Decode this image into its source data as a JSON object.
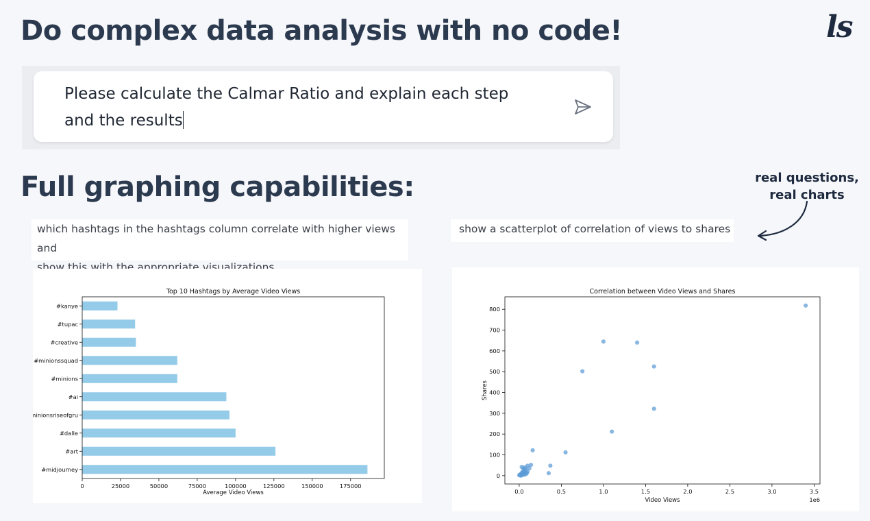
{
  "heading_main": "Do complex data analysis with no code!",
  "logo_text": "ls",
  "prompt": {
    "line1": "Please calculate the Calmar Ratio and explain each step",
    "line2": "and the results",
    "send_icon": "send-icon"
  },
  "heading_graph": "Full graphing capabilities:",
  "callout": {
    "line1": "real questions,",
    "line2": "real charts"
  },
  "query_left": {
    "line1": "which hashtags in the hashtags column correlate with higher views and",
    "line2": "show this with the appropriate visualizations"
  },
  "query_right": "show a scatterplot of correlation of views to shares",
  "colors": {
    "heading": "#2c3a4f",
    "bar": "#94cbe8",
    "point": "#5b9bd5"
  },
  "chart_data": [
    {
      "type": "bar",
      "orientation": "horizontal",
      "title": "Top 10 Hashtags by Average Video Views",
      "xlabel": "Average Video Views",
      "ylabel": "",
      "categories": [
        "#kanye",
        "#tupac",
        "#creative",
        "#minionssquad",
        "#minions",
        "#ai",
        "#minionsriseofgru",
        "#dalle",
        "#art",
        "#midjourney"
      ],
      "values": [
        23000,
        34500,
        35000,
        62000,
        62000,
        94000,
        96000,
        100000,
        126000,
        186000
      ],
      "xticks": [
        "0",
        "25000",
        "50000",
        "75000",
        "100000",
        "125000",
        "150000",
        "175000"
      ],
      "xtick_values": [
        0,
        25000,
        50000,
        75000,
        100000,
        125000,
        150000,
        175000
      ],
      "xlim": [
        0,
        197000
      ]
    },
    {
      "type": "scatter",
      "title": "Correlation between Video Views and Shares",
      "xlabel": "Video Views",
      "ylabel": "Shares",
      "x_scale_label": "1e6",
      "xticks": [
        "0.0",
        "0.5",
        "1.0",
        "1.5",
        "2.0",
        "2.5",
        "3.0",
        "3.5"
      ],
      "xtick_values": [
        0,
        0.5,
        1.0,
        1.5,
        2.0,
        2.5,
        3.0,
        3.5
      ],
      "yticks": [
        "0",
        "100",
        "200",
        "300",
        "400",
        "500",
        "600",
        "700",
        "800"
      ],
      "ytick_values": [
        0,
        100,
        200,
        300,
        400,
        500,
        600,
        700,
        800
      ],
      "xlim": [
        -0.17,
        3.57
      ],
      "ylim": [
        -40,
        860
      ],
      "points": [
        [
          0.0,
          2
        ],
        [
          0.01,
          5
        ],
        [
          0.02,
          8
        ],
        [
          0.02,
          0
        ],
        [
          0.03,
          12
        ],
        [
          0.03,
          3
        ],
        [
          0.04,
          6
        ],
        [
          0.04,
          20
        ],
        [
          0.05,
          10
        ],
        [
          0.05,
          15
        ],
        [
          0.06,
          4
        ],
        [
          0.06,
          25
        ],
        [
          0.07,
          18
        ],
        [
          0.08,
          8
        ],
        [
          0.08,
          30
        ],
        [
          0.09,
          12
        ],
        [
          0.1,
          20
        ],
        [
          0.1,
          48
        ],
        [
          0.12,
          35
        ],
        [
          0.14,
          52
        ],
        [
          0.16,
          122
        ],
        [
          0.03,
          42
        ],
        [
          0.05,
          35
        ],
        [
          0.07,
          40
        ],
        [
          0.35,
          12
        ],
        [
          0.37,
          48
        ],
        [
          0.55,
          112
        ],
        [
          0.75,
          502
        ],
        [
          1.0,
          645
        ],
        [
          1.1,
          212
        ],
        [
          1.4,
          640
        ],
        [
          1.6,
          525
        ],
        [
          1.6,
          322
        ],
        [
          3.4,
          818
        ]
      ]
    }
  ]
}
